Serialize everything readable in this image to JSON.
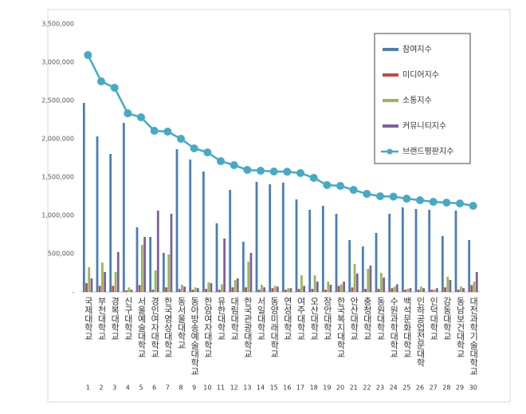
{
  "chart_data": {
    "type": "bar-line",
    "categories": [
      "국제대학교",
      "부천대학교",
      "경복대학교",
      "신구대학교",
      "서울예술대학교",
      "경인여자대학교",
      "한국영상대학교",
      "동서울대학교",
      "동아방송예술대학교",
      "한양여자대학교",
      "유한대학교",
      "대림대학교",
      "한국관광대학교",
      "서일대학교",
      "동양미래대학교",
      "연성대학교",
      "여주대학교",
      "오산대학교",
      "장안대학교",
      "한국복지대학교",
      "안산대학교",
      "충청대학교",
      "동원대학교",
      "수원과학대학교",
      "백석문화대학교",
      "인하공업전문대학",
      "인덕대학교",
      "강동대학교",
      "동남보건대학교",
      "대전과학기술대학교"
    ],
    "ranks": [
      1,
      2,
      3,
      4,
      5,
      6,
      7,
      8,
      9,
      10,
      11,
      12,
      13,
      14,
      15,
      16,
      17,
      18,
      19,
      20,
      21,
      22,
      23,
      24,
      25,
      26,
      27,
      28,
      29,
      30
    ],
    "series": [
      {
        "name": "참여지수",
        "kind": "bar",
        "color": "#4a7ebb",
        "values": [
          2469000,
          2031000,
          1802000,
          2208000,
          844000,
          719000,
          510000,
          1865000,
          1729000,
          1573000,
          896000,
          1333000,
          656000,
          1438000,
          1406000,
          1427000,
          1208000,
          1073000,
          1125000,
          1021000,
          677000,
          594000,
          771000,
          1021000,
          1104000,
          1083000,
          1073000,
          729000,
          1063000,
          677000
        ]
      },
      {
        "name": "미디어지수",
        "kind": "bar",
        "color": "#be4b48",
        "values": [
          115000,
          80000,
          80000,
          20000,
          90000,
          30000,
          60000,
          40000,
          30000,
          40000,
          30000,
          60000,
          60000,
          30000,
          50000,
          30000,
          40000,
          40000,
          30000,
          80000,
          60000,
          40000,
          40000,
          50000,
          30000,
          30000,
          30000,
          60000,
          30000,
          90000
        ]
      },
      {
        "name": "소통지수",
        "kind": "bar",
        "color": "#98b954",
        "values": [
          323000,
          385000,
          260000,
          60000,
          615000,
          281000,
          490000,
          94000,
          60000,
          125000,
          100000,
          156000,
          396000,
          94000,
          80000,
          50000,
          219000,
          219000,
          135000,
          100000,
          365000,
          302000,
          250000,
          70000,
          40000,
          70000,
          30000,
          198000,
          70000,
          135000
        ]
      },
      {
        "name": "커뮤니티지수",
        "kind": "bar",
        "color": "#7d60a0",
        "values": [
          177000,
          260000,
          521000,
          30000,
          719000,
          1063000,
          1021000,
          70000,
          50000,
          115000,
          698000,
          177000,
          510000,
          60000,
          70000,
          50000,
          80000,
          135000,
          94000,
          135000,
          240000,
          344000,
          188000,
          100000,
          50000,
          50000,
          50000,
          156000,
          50000,
          260000
        ]
      },
      {
        "name": "브랜드평판지수",
        "kind": "line",
        "color": "#46aac5",
        "values": [
          3094000,
          2750000,
          2667000,
          2333000,
          2281000,
          2104000,
          2094000,
          2000000,
          1875000,
          1823000,
          1708000,
          1656000,
          1594000,
          1583000,
          1573000,
          1570000,
          1552000,
          1490000,
          1396000,
          1385000,
          1333000,
          1281000,
          1250000,
          1245000,
          1219000,
          1198000,
          1177000,
          1167000,
          1156000,
          1125000
        ]
      }
    ],
    "ylim": [
      0,
      3500000
    ],
    "yticks": [
      {
        "value": 0,
        "label": "-"
      },
      {
        "value": 500000,
        "label": "500,000"
      },
      {
        "value": 1000000,
        "label": "1,000,000"
      },
      {
        "value": 1500000,
        "label": "1,500,000"
      },
      {
        "value": 2000000,
        "label": "2,000,000"
      },
      {
        "value": 2500000,
        "label": "2,500,000"
      },
      {
        "value": 3000000,
        "label": "3,000,000"
      },
      {
        "value": 3500000,
        "label": "3,500,000"
      }
    ],
    "grid": false,
    "legend": "upper right"
  }
}
